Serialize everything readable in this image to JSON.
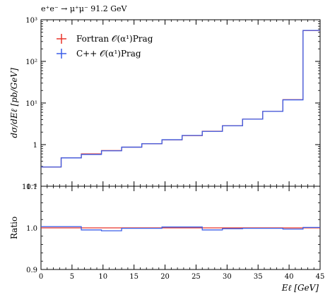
{
  "chart_data": {
    "type": "line",
    "title": "e⁺e⁻ → μ⁺μ⁻ 91.2 GeV",
    "main": {
      "ylabel": "dσ/dEℓ [pb/GeV]",
      "yscale": "log",
      "ylim": [
        0.1,
        1000
      ],
      "y_ticks": [
        {
          "value": 1000,
          "label": "10³"
        },
        {
          "value": 100,
          "label": "10²"
        },
        {
          "value": 10,
          "label": "10¹"
        },
        {
          "value": 1,
          "label": "1"
        },
        {
          "value": 0.1,
          "label": "10⁻¹"
        }
      ],
      "bin_edges": [
        0,
        3.25,
        6.5,
        9.75,
        13,
        16.25,
        19.5,
        22.75,
        26,
        29.25,
        32.5,
        35.75,
        39,
        42.25,
        45
      ],
      "series": [
        {
          "name": "Fortran 𝒪(α¹)Prag",
          "color": "#e8342a",
          "values": [
            0.29,
            0.48,
            0.6,
            0.72,
            0.87,
            1.05,
            1.3,
            1.65,
            2.1,
            2.85,
            4.1,
            6.3,
            12.0,
            550
          ]
        },
        {
          "name": "C++ 𝒪(α¹)Prag",
          "color": "#3a5ee8",
          "values": [
            0.29,
            0.48,
            0.58,
            0.71,
            0.87,
            1.05,
            1.31,
            1.66,
            2.08,
            2.84,
            4.1,
            6.3,
            11.9,
            555
          ]
        }
      ],
      "legend_position": "top-left"
    },
    "ratio": {
      "ylabel": "Ratio",
      "ylim": [
        0.9,
        1.1
      ],
      "y_ticks": [
        {
          "value": 1.1,
          "label": "1.1"
        },
        {
          "value": 1.0,
          "label": "1.0"
        },
        {
          "value": 0.9,
          "label": "0.9"
        }
      ],
      "reference": 1.0,
      "values": [
        1.003,
        1.003,
        0.995,
        0.993,
        0.999,
        0.999,
        1.002,
        1.002,
        0.995,
        0.998,
        0.999,
        0.999,
        0.997,
        1.001
      ]
    },
    "xlabel": "Eℓ [GeV]",
    "xlim": [
      0,
      45
    ],
    "x_ticks": [
      0,
      5,
      10,
      15,
      20,
      25,
      30,
      35,
      40,
      45
    ]
  }
}
